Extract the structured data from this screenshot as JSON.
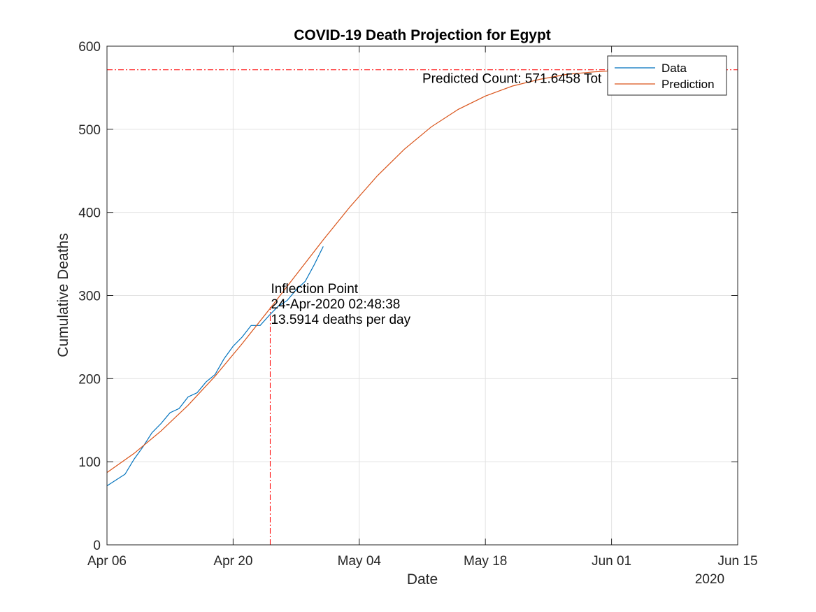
{
  "chart_data": {
    "type": "line",
    "title": "COVID-19 Death Projection for Egypt",
    "xlabel": "Date",
    "ylabel": "Cumulative Deaths",
    "year_label": "2020",
    "x_axis": {
      "type": "date",
      "range": [
        "2020-04-06",
        "2020-06-15"
      ],
      "ticks": [
        "2020-04-06",
        "2020-04-20",
        "2020-05-04",
        "2020-05-18",
        "2020-06-01",
        "2020-06-15"
      ],
      "tick_labels": [
        "Apr 06",
        "Apr 20",
        "May 04",
        "May 18",
        "Jun 01",
        "Jun 15"
      ]
    },
    "y_axis": {
      "range": [
        0,
        600
      ],
      "ticks": [
        0,
        100,
        200,
        300,
        400,
        500,
        600
      ],
      "tick_labels": [
        "0",
        "100",
        "200",
        "300",
        "400",
        "500",
        "600"
      ]
    },
    "grid": true,
    "legend_position": "top-right",
    "series": [
      {
        "name": "Data",
        "color": "#0072BD",
        "points": [
          [
            "2020-04-06",
            71
          ],
          [
            "2020-04-08",
            85
          ],
          [
            "2020-04-09",
            103
          ],
          [
            "2020-04-10",
            118
          ],
          [
            "2020-04-11",
            135
          ],
          [
            "2020-04-12",
            146
          ],
          [
            "2020-04-13",
            159
          ],
          [
            "2020-04-14",
            164
          ],
          [
            "2020-04-15",
            178
          ],
          [
            "2020-04-16",
            183
          ],
          [
            "2020-04-17",
            196
          ],
          [
            "2020-04-18",
            205
          ],
          [
            "2020-04-19",
            224
          ],
          [
            "2020-04-20",
            239
          ],
          [
            "2020-04-21",
            250
          ],
          [
            "2020-04-22",
            264
          ],
          [
            "2020-04-23",
            264
          ],
          [
            "2020-04-24",
            276
          ],
          [
            "2020-04-25",
            287
          ],
          [
            "2020-04-26",
            294
          ],
          [
            "2020-04-27",
            307
          ],
          [
            "2020-04-28",
            317
          ],
          [
            "2020-04-29",
            337
          ],
          [
            "2020-04-30",
            359
          ]
        ]
      },
      {
        "name": "Prediction",
        "color": "#D95319",
        "points": [
          [
            "2020-04-06",
            87
          ],
          [
            "2020-04-09",
            110
          ],
          [
            "2020-04-12",
            137
          ],
          [
            "2020-04-15",
            168
          ],
          [
            "2020-04-18",
            203
          ],
          [
            "2020-04-21",
            242
          ],
          [
            "2020-04-24",
            283
          ],
          [
            "2020-04-27",
            325
          ],
          [
            "2020-04-30",
            367
          ],
          [
            "2020-05-03",
            407
          ],
          [
            "2020-05-06",
            444
          ],
          [
            "2020-05-09",
            476
          ],
          [
            "2020-05-12",
            503
          ],
          [
            "2020-05-15",
            524
          ],
          [
            "2020-05-18",
            540
          ],
          [
            "2020-05-21",
            552
          ],
          [
            "2020-05-24",
            560
          ],
          [
            "2020-05-27",
            566
          ],
          [
            "2020-05-30",
            569
          ],
          [
            "2020-06-02",
            571
          ]
        ]
      }
    ],
    "reference_lines": [
      {
        "orientation": "horizontal",
        "y": 571.6458,
        "color": "#FF0000",
        "style": "dash-dot"
      },
      {
        "orientation": "vertical",
        "x": "2020-04-24T02:48:38",
        "y_to": 286,
        "color": "#FF0000",
        "style": "dash-dot"
      }
    ],
    "annotations": [
      {
        "text": "Predicted Count: 571.6458 Tot",
        "x": "2020-05-11",
        "y": 556
      },
      {
        "lines": [
          "Inflection Point",
          "24-Apr-2020 02:48:38",
          "13.5914 deaths per day"
        ],
        "x": "2020-04-24T02:48:38",
        "y": 303
      }
    ]
  }
}
